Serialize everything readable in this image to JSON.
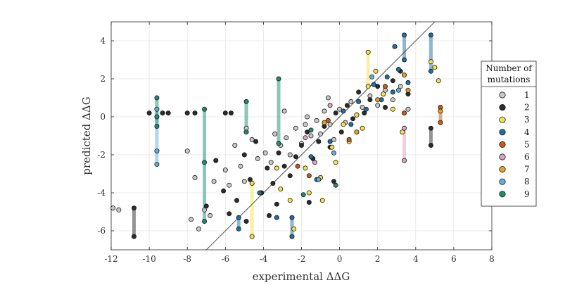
{
  "chart_data": {
    "type": "scatter",
    "xlabel": "experimental ΔΔG",
    "ylabel": "predicted ΔΔG",
    "xlim": [
      -12,
      8
    ],
    "ylim": [
      -7,
      5
    ],
    "xticks": [
      -12,
      -10,
      -8,
      -6,
      -4,
      -2,
      0,
      2,
      4,
      6,
      8
    ],
    "yticks": [
      -6,
      -4,
      -2,
      0,
      2,
      4
    ],
    "grid": true,
    "diagonal_reference_line": true,
    "legend_position": "right",
    "legend_title": [
      "Number of",
      "mutations"
    ],
    "series_colors": {
      "1": "#c8c8c8",
      "2": "#2b2b2b",
      "3": "#f2e34a",
      "4": "#1f6fa3",
      "5": "#c85a14",
      "6": "#d9a2c0",
      "7": "#e8a020",
      "8": "#5fb0dd",
      "9": "#1f8c6e"
    },
    "series": [
      {
        "name": "1",
        "points": [
          [
            -11.9,
            -4.8
          ],
          [
            -11.6,
            -4.9
          ],
          [
            -8.0,
            -1.8
          ],
          [
            -7.8,
            -5.4
          ],
          [
            -7.6,
            -3.2
          ],
          [
            -7.4,
            -5.9
          ],
          [
            -7.1,
            -4.9
          ],
          [
            -6.8,
            -5.2
          ],
          [
            -6.6,
            -3.4
          ],
          [
            -6.0,
            -2.8
          ],
          [
            -5.8,
            -3.6
          ],
          [
            -5.5,
            -1.5
          ],
          [
            -5.2,
            -2.6
          ],
          [
            -5.0,
            -3.4
          ],
          [
            -4.6,
            -1.2
          ],
          [
            -4.3,
            -2.2
          ],
          [
            -3.9,
            -1.9
          ],
          [
            -3.6,
            -2.4
          ],
          [
            -3.4,
            -0.9
          ],
          [
            -3.1,
            -1.5
          ],
          [
            -2.8,
            -1.1
          ],
          [
            -2.6,
            -2.0
          ],
          [
            -2.3,
            -0.6
          ],
          [
            -2.0,
            -1.4
          ],
          [
            -1.8,
            -0.4
          ],
          [
            -1.5,
            -1.0
          ],
          [
            -1.2,
            -0.2
          ],
          [
            -1.0,
            -0.9
          ],
          [
            -0.8,
            0.3
          ],
          [
            -0.5,
            -0.4
          ],
          [
            -0.3,
            -1.2
          ],
          [
            0.0,
            0.4
          ],
          [
            0.3,
            -0.3
          ],
          [
            0.6,
            0.8
          ],
          [
            0.9,
            0.1
          ],
          [
            1.2,
            0.5
          ],
          [
            1.6,
            1.1
          ],
          [
            2.0,
            0.6
          ],
          [
            2.4,
            1.4
          ],
          [
            2.8,
            0.9
          ],
          [
            3.2,
            1.6
          ],
          [
            3.6,
            0.4
          ],
          [
            -2.9,
            0.3
          ],
          [
            -1.7,
            0.0
          ],
          [
            -0.6,
            1.0
          ],
          [
            -4.9,
            -0.6
          ]
        ]
      },
      {
        "name": "2",
        "points": [
          [
            -10.8,
            -4.8
          ],
          [
            -10.8,
            -6.3
          ],
          [
            -10.0,
            0.2
          ],
          [
            -9.3,
            0.2
          ],
          [
            -9.0,
            0.2
          ],
          [
            -8.0,
            0.2
          ],
          [
            -7.6,
            0.2
          ],
          [
            -6.0,
            0.2
          ],
          [
            -5.7,
            0.2
          ],
          [
            -7.0,
            -4.7
          ],
          [
            -6.5,
            -2.3
          ],
          [
            -6.1,
            -3.9
          ],
          [
            -5.8,
            -5.1
          ],
          [
            -5.4,
            -4.4
          ],
          [
            -5.0,
            -2.0
          ],
          [
            -4.7,
            -3.3
          ],
          [
            -4.4,
            -1.3
          ],
          [
            -4.1,
            -4.0
          ],
          [
            -3.8,
            -2.7
          ],
          [
            -3.5,
            -3.5
          ],
          [
            -3.2,
            -1.9
          ],
          [
            -2.9,
            -2.6
          ],
          [
            -2.6,
            -3.1
          ],
          [
            -2.3,
            -2.1
          ],
          [
            -2.0,
            -1.5
          ],
          [
            -1.7,
            -0.8
          ],
          [
            -1.4,
            -2.2
          ],
          [
            -1.1,
            -1.3
          ],
          [
            -0.8,
            -0.5
          ],
          [
            -0.5,
            -1.6
          ],
          [
            -0.2,
            0.2
          ],
          [
            0.1,
            -0.8
          ],
          [
            0.4,
            0.6
          ],
          [
            0.7,
            -0.1
          ],
          [
            1.0,
            1.3
          ],
          [
            1.3,
            0.2
          ],
          [
            1.6,
            0.9
          ],
          [
            2.0,
            1.6
          ],
          [
            2.4,
            0.5
          ],
          [
            2.8,
            1.9
          ],
          [
            3.2,
            2.4
          ],
          [
            3.6,
            1.2
          ],
          [
            4.8,
            -0.6
          ],
          [
            4.8,
            -1.5
          ],
          [
            -3.7,
            -5.2
          ],
          [
            -3.3,
            -4.6
          ],
          [
            -1.6,
            -4.5
          ],
          [
            -0.3,
            -3.4
          ],
          [
            -4.9,
            -5.5
          ]
        ]
      },
      {
        "name": "3",
        "points": [
          [
            -4.6,
            -3.5
          ],
          [
            -4.6,
            -6.3
          ],
          [
            -3.3,
            -2.7
          ],
          [
            -3.1,
            -3.8
          ],
          [
            -2.6,
            -4.4
          ],
          [
            -2.4,
            -5.9
          ],
          [
            -1.8,
            -2.7
          ],
          [
            -1.6,
            -4.0
          ],
          [
            -1.0,
            -3.2
          ],
          [
            -0.9,
            -4.4
          ],
          [
            -0.4,
            -1.6
          ],
          [
            -0.2,
            -2.4
          ],
          [
            0.2,
            -0.4
          ],
          [
            0.5,
            -1.3
          ],
          [
            0.9,
            0.1
          ],
          [
            1.2,
            -0.6
          ],
          [
            1.5,
            3.4
          ],
          [
            1.5,
            1.6
          ],
          [
            1.9,
            2.4
          ],
          [
            2.3,
            1.2
          ],
          [
            2.8,
            0.4
          ],
          [
            3.3,
            -0.8
          ],
          [
            4.8,
            2.9
          ],
          [
            5.0,
            2.6
          ],
          [
            5.2,
            1.9
          ]
        ]
      },
      {
        "name": "4",
        "points": [
          [
            -5.3,
            -5.3
          ],
          [
            -5.3,
            -5.9
          ],
          [
            -4.2,
            -4.0
          ],
          [
            -3.3,
            -5.3
          ],
          [
            -2.5,
            -5.3
          ],
          [
            -2.5,
            -6.3
          ],
          [
            -1.5,
            -2.1
          ],
          [
            -1.2,
            -3.3
          ],
          [
            -0.5,
            -1.3
          ],
          [
            0.2,
            0.3
          ],
          [
            0.6,
            -0.4
          ],
          [
            1.0,
            0.8
          ],
          [
            1.4,
            0.4
          ],
          [
            1.8,
            1.7
          ],
          [
            2.2,
            0.9
          ],
          [
            2.5,
            2.1
          ],
          [
            2.8,
            1.3
          ],
          [
            2.9,
            3.7
          ],
          [
            3.1,
            2.5
          ],
          [
            3.4,
            4.3
          ],
          [
            3.4,
            3.0
          ],
          [
            3.6,
            1.8
          ],
          [
            4.8,
            4.3
          ],
          [
            4.8,
            2.4
          ]
        ]
      },
      {
        "name": "5",
        "points": [
          [
            -2.2,
            -2.6
          ],
          [
            -1.6,
            -3.1
          ],
          [
            -0.6,
            -0.2
          ],
          [
            0.5,
            -1.2
          ],
          [
            2.4,
            1.6
          ],
          [
            3.4,
            0.2
          ],
          [
            5.3,
            0.5
          ],
          [
            5.3,
            -0.3
          ]
        ]
      },
      {
        "name": "6",
        "points": [
          [
            -1.8,
            -1.1
          ],
          [
            -1.3,
            -2.4
          ],
          [
            -0.5,
            0.6
          ],
          [
            3.4,
            -0.6
          ],
          [
            3.4,
            -2.3
          ]
        ]
      },
      {
        "name": "7",
        "points": [
          [
            -0.8,
            -0.3
          ],
          [
            0.9,
            -0.8
          ],
          [
            2.0,
            0.9
          ],
          [
            3.4,
            2.2
          ],
          [
            3.6,
            1.4
          ],
          [
            5.3,
            0.3
          ]
        ]
      },
      {
        "name": "8",
        "points": [
          [
            -9.6,
            0.4
          ],
          [
            -9.6,
            -1.8
          ],
          [
            -9.6,
            -2.5
          ],
          [
            -1.1,
            -3.3
          ],
          [
            -0.3,
            -1.9
          ],
          [
            1.7,
            2.1
          ],
          [
            3.1,
            1.4
          ]
        ]
      },
      {
        "name": "9",
        "points": [
          [
            -9.6,
            1.0
          ],
          [
            -9.6,
            0.0
          ],
          [
            -9.6,
            -0.5
          ],
          [
            -7.1,
            0.4
          ],
          [
            -7.1,
            -2.4
          ],
          [
            -7.1,
            -5.5
          ],
          [
            -4.9,
            0.8
          ],
          [
            -4.9,
            -0.8
          ],
          [
            -3.2,
            2.0
          ],
          [
            -3.2,
            -1.4
          ],
          [
            -1.5,
            -0.7
          ],
          [
            -0.2,
            -3.6
          ],
          [
            -1.9,
            -4.1
          ]
        ]
      }
    ]
  },
  "legend": {
    "title_line1": "Number of",
    "title_line2": "mutations",
    "items": [
      "1",
      "2",
      "3",
      "4",
      "5",
      "6",
      "7",
      "8",
      "9"
    ]
  }
}
